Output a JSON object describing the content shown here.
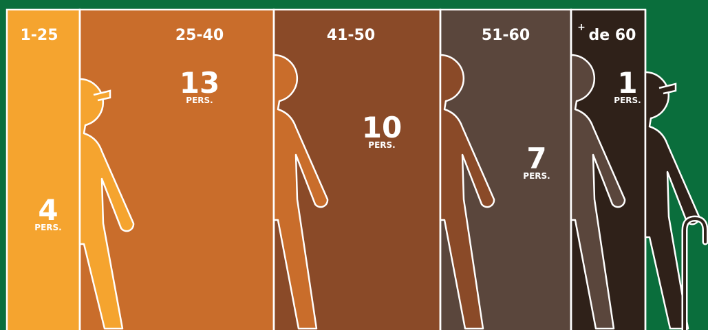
{
  "groups": [
    {
      "label": "1-25",
      "value": 4,
      "unit": "PERS."
    },
    {
      "label": "25-40",
      "value": 13,
      "unit": "PERS."
    },
    {
      "label": "41-50",
      "value": 10,
      "unit": "PERS."
    },
    {
      "label": "51-60",
      "value": 7,
      "unit": "PERS."
    },
    {
      "sup": "+",
      "label": "de 60",
      "value": 1,
      "unit": "PERS."
    }
  ]
}
